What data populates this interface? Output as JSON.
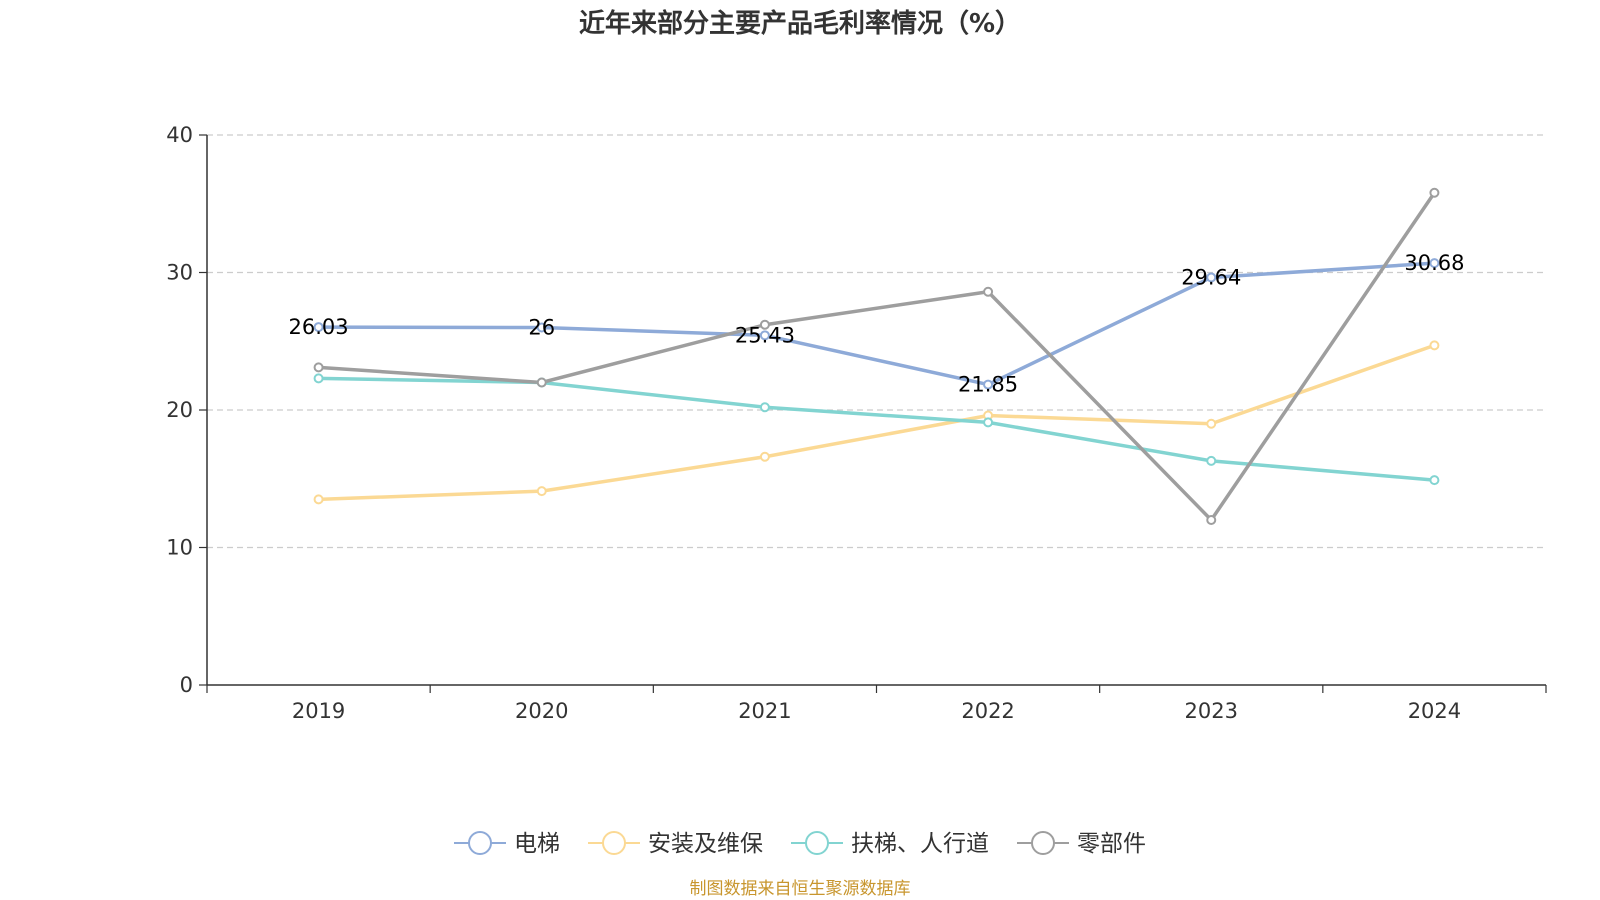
{
  "chart_data": {
    "type": "line",
    "title": "近年来部分主要产品毛利率情况（%）",
    "categories": [
      "2019",
      "2020",
      "2021",
      "2022",
      "2023",
      "2024"
    ],
    "ylim": [
      0,
      40
    ],
    "yticks": [
      0,
      10,
      20,
      30,
      40
    ],
    "grid": true,
    "legend_position": "bottom",
    "series": [
      {
        "name": "电梯",
        "color": "#8eaad8",
        "values": [
          26.03,
          26,
          25.43,
          21.85,
          29.64,
          30.68
        ],
        "labels": [
          "26.03",
          "26",
          "25.43",
          "21.85",
          "29.64",
          "30.68"
        ]
      },
      {
        "name": "安装及维保",
        "color": "#fbd994",
        "values": [
          13.5,
          14.1,
          16.6,
          19.6,
          19.0,
          24.7
        ]
      },
      {
        "name": "扶梯、人行道",
        "color": "#82d4d1",
        "values": [
          22.3,
          22.0,
          20.2,
          19.1,
          16.3,
          14.9
        ]
      },
      {
        "name": "零部件",
        "color": "#9e9e9e",
        "values": [
          23.1,
          22.0,
          26.2,
          28.6,
          12.0,
          35.8
        ]
      }
    ],
    "source": "制图数据来自恒生聚源数据库",
    "source_color": "#c8962e"
  }
}
